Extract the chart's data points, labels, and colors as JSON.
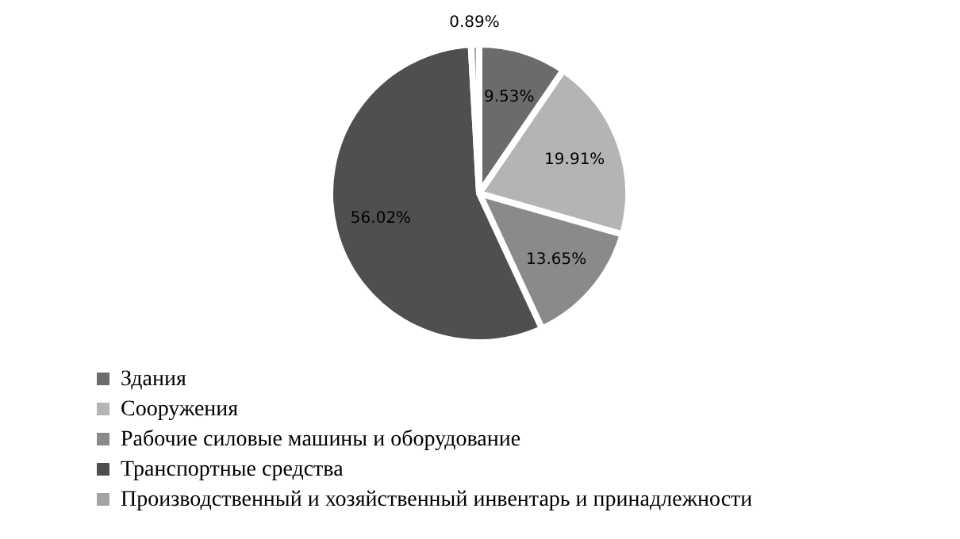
{
  "chart_data": {
    "type": "pie",
    "categories": [
      "Здания",
      "Сооружения",
      "Рабочие силовые машины и оборудование",
      "Транспортные средства",
      "Производственный и хозяйственный инвентарь и принадлежности"
    ],
    "values": [
      9.53,
      19.91,
      13.65,
      56.02,
      0.89
    ],
    "value_labels": [
      "9.53%",
      "19.91%",
      "13.65%",
      "56.02%",
      "0.89%"
    ],
    "colors": [
      "#6b6b6b",
      "#b4b4b4",
      "#8a8a8a",
      "#4f4f4f",
      "#a3a3a3"
    ],
    "legend": "bottom left"
  }
}
